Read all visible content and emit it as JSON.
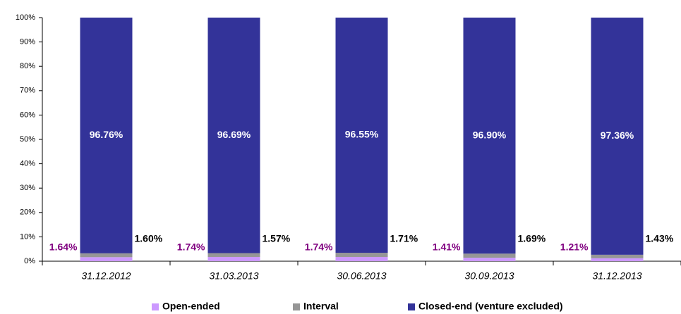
{
  "chart_data": {
    "type": "stacked_bar",
    "categories": [
      "31.12.2012",
      "31.03.2013",
      "30.06.2013",
      "30.09.2013",
      "31.12.2013"
    ],
    "series": [
      {
        "name": "Open-ended",
        "color": "#cc99ff",
        "label_color": "#800080",
        "values": [
          1.64,
          1.74,
          1.74,
          1.41,
          1.21
        ],
        "value_labels": [
          "1.64%",
          "1.74%",
          "1.74%",
          "1.41%",
          "1.21%"
        ]
      },
      {
        "name": "Interval",
        "color": "#969696",
        "label_color": "#000000",
        "values": [
          1.6,
          1.57,
          1.71,
          1.69,
          1.43
        ],
        "value_labels": [
          "1.60%",
          "1.57%",
          "1.71%",
          "1.69%",
          "1.43%"
        ]
      },
      {
        "name": "Closed-end (venture excluded)",
        "color": "#333399",
        "label_color": "#ffffff",
        "values": [
          96.76,
          96.69,
          96.55,
          96.9,
          97.36
        ],
        "value_labels": [
          "96.76%",
          "96.69%",
          "96.55%",
          "96.90%",
          "97.36%"
        ]
      }
    ],
    "ylim": [
      0,
      100
    ],
    "yticks": [
      {
        "value": 0,
        "label": "0%"
      },
      {
        "value": 10,
        "label": "10%"
      },
      {
        "value": 20,
        "label": "20%"
      },
      {
        "value": 30,
        "label": "30%"
      },
      {
        "value": 40,
        "label": "40%"
      },
      {
        "value": 50,
        "label": "50%"
      },
      {
        "value": 60,
        "label": "60%"
      },
      {
        "value": 70,
        "label": "70%"
      },
      {
        "value": 80,
        "label": "80%"
      },
      {
        "value": 90,
        "label": "90%"
      },
      {
        "value": 100,
        "label": "100%"
      }
    ]
  }
}
